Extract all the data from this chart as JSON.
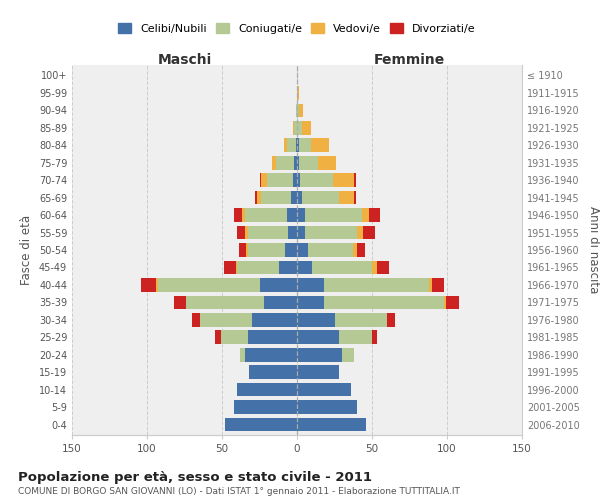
{
  "age_groups": [
    "0-4",
    "5-9",
    "10-14",
    "15-19",
    "20-24",
    "25-29",
    "30-34",
    "35-39",
    "40-44",
    "45-49",
    "50-54",
    "55-59",
    "60-64",
    "65-69",
    "70-74",
    "75-79",
    "80-84",
    "85-89",
    "90-94",
    "95-99",
    "100+"
  ],
  "birth_years": [
    "2006-2010",
    "2001-2005",
    "1996-2000",
    "1991-1995",
    "1986-1990",
    "1981-1985",
    "1976-1980",
    "1971-1975",
    "1966-1970",
    "1961-1965",
    "1956-1960",
    "1951-1955",
    "1946-1950",
    "1941-1945",
    "1936-1940",
    "1931-1935",
    "1926-1930",
    "1921-1925",
    "1916-1920",
    "1911-1915",
    "≤ 1910"
  ],
  "male": {
    "celibe": [
      48,
      42,
      40,
      32,
      35,
      33,
      30,
      22,
      25,
      12,
      8,
      6,
      7,
      4,
      3,
      2,
      1,
      0,
      0,
      0,
      0
    ],
    "coniugato": [
      0,
      0,
      0,
      0,
      3,
      18,
      35,
      52,
      68,
      28,
      25,
      27,
      28,
      20,
      17,
      12,
      6,
      2,
      1,
      0,
      0
    ],
    "vedovo": [
      0,
      0,
      0,
      0,
      0,
      0,
      0,
      0,
      1,
      1,
      1,
      2,
      2,
      3,
      4,
      3,
      2,
      1,
      0,
      0,
      0
    ],
    "divorziato": [
      0,
      0,
      0,
      0,
      0,
      4,
      5,
      8,
      10,
      8,
      5,
      5,
      5,
      1,
      1,
      0,
      0,
      0,
      0,
      0,
      0
    ]
  },
  "female": {
    "nubile": [
      46,
      40,
      36,
      28,
      30,
      28,
      25,
      18,
      18,
      10,
      7,
      5,
      5,
      3,
      2,
      1,
      1,
      0,
      0,
      0,
      0
    ],
    "coniugata": [
      0,
      0,
      0,
      0,
      8,
      22,
      35,
      80,
      70,
      40,
      30,
      35,
      38,
      25,
      22,
      13,
      8,
      3,
      1,
      0,
      0
    ],
    "vedova": [
      0,
      0,
      0,
      0,
      0,
      0,
      0,
      1,
      2,
      3,
      3,
      4,
      5,
      10,
      14,
      12,
      12,
      6,
      3,
      1,
      0
    ],
    "divorziata": [
      0,
      0,
      0,
      0,
      0,
      3,
      5,
      9,
      8,
      8,
      5,
      8,
      7,
      1,
      1,
      0,
      0,
      0,
      0,
      0,
      0
    ]
  },
  "colors": {
    "celibe": "#4472a8",
    "coniugato": "#b5c994",
    "vedovo": "#f0b042",
    "divorziato": "#cc2222"
  },
  "title": "Popolazione per età, sesso e stato civile - 2011",
  "subtitle": "COMUNE DI BORGO SAN GIOVANNI (LO) - Dati ISTAT 1° gennaio 2011 - Elaborazione TUTTITALIA.IT",
  "label_maschi": "Maschi",
  "label_femmine": "Femmine",
  "ylabel_left": "Fasce di età",
  "ylabel_right": "Anni di nascita",
  "xlim": 150,
  "bg_color": "#efefef",
  "grid_color": "#cccccc"
}
